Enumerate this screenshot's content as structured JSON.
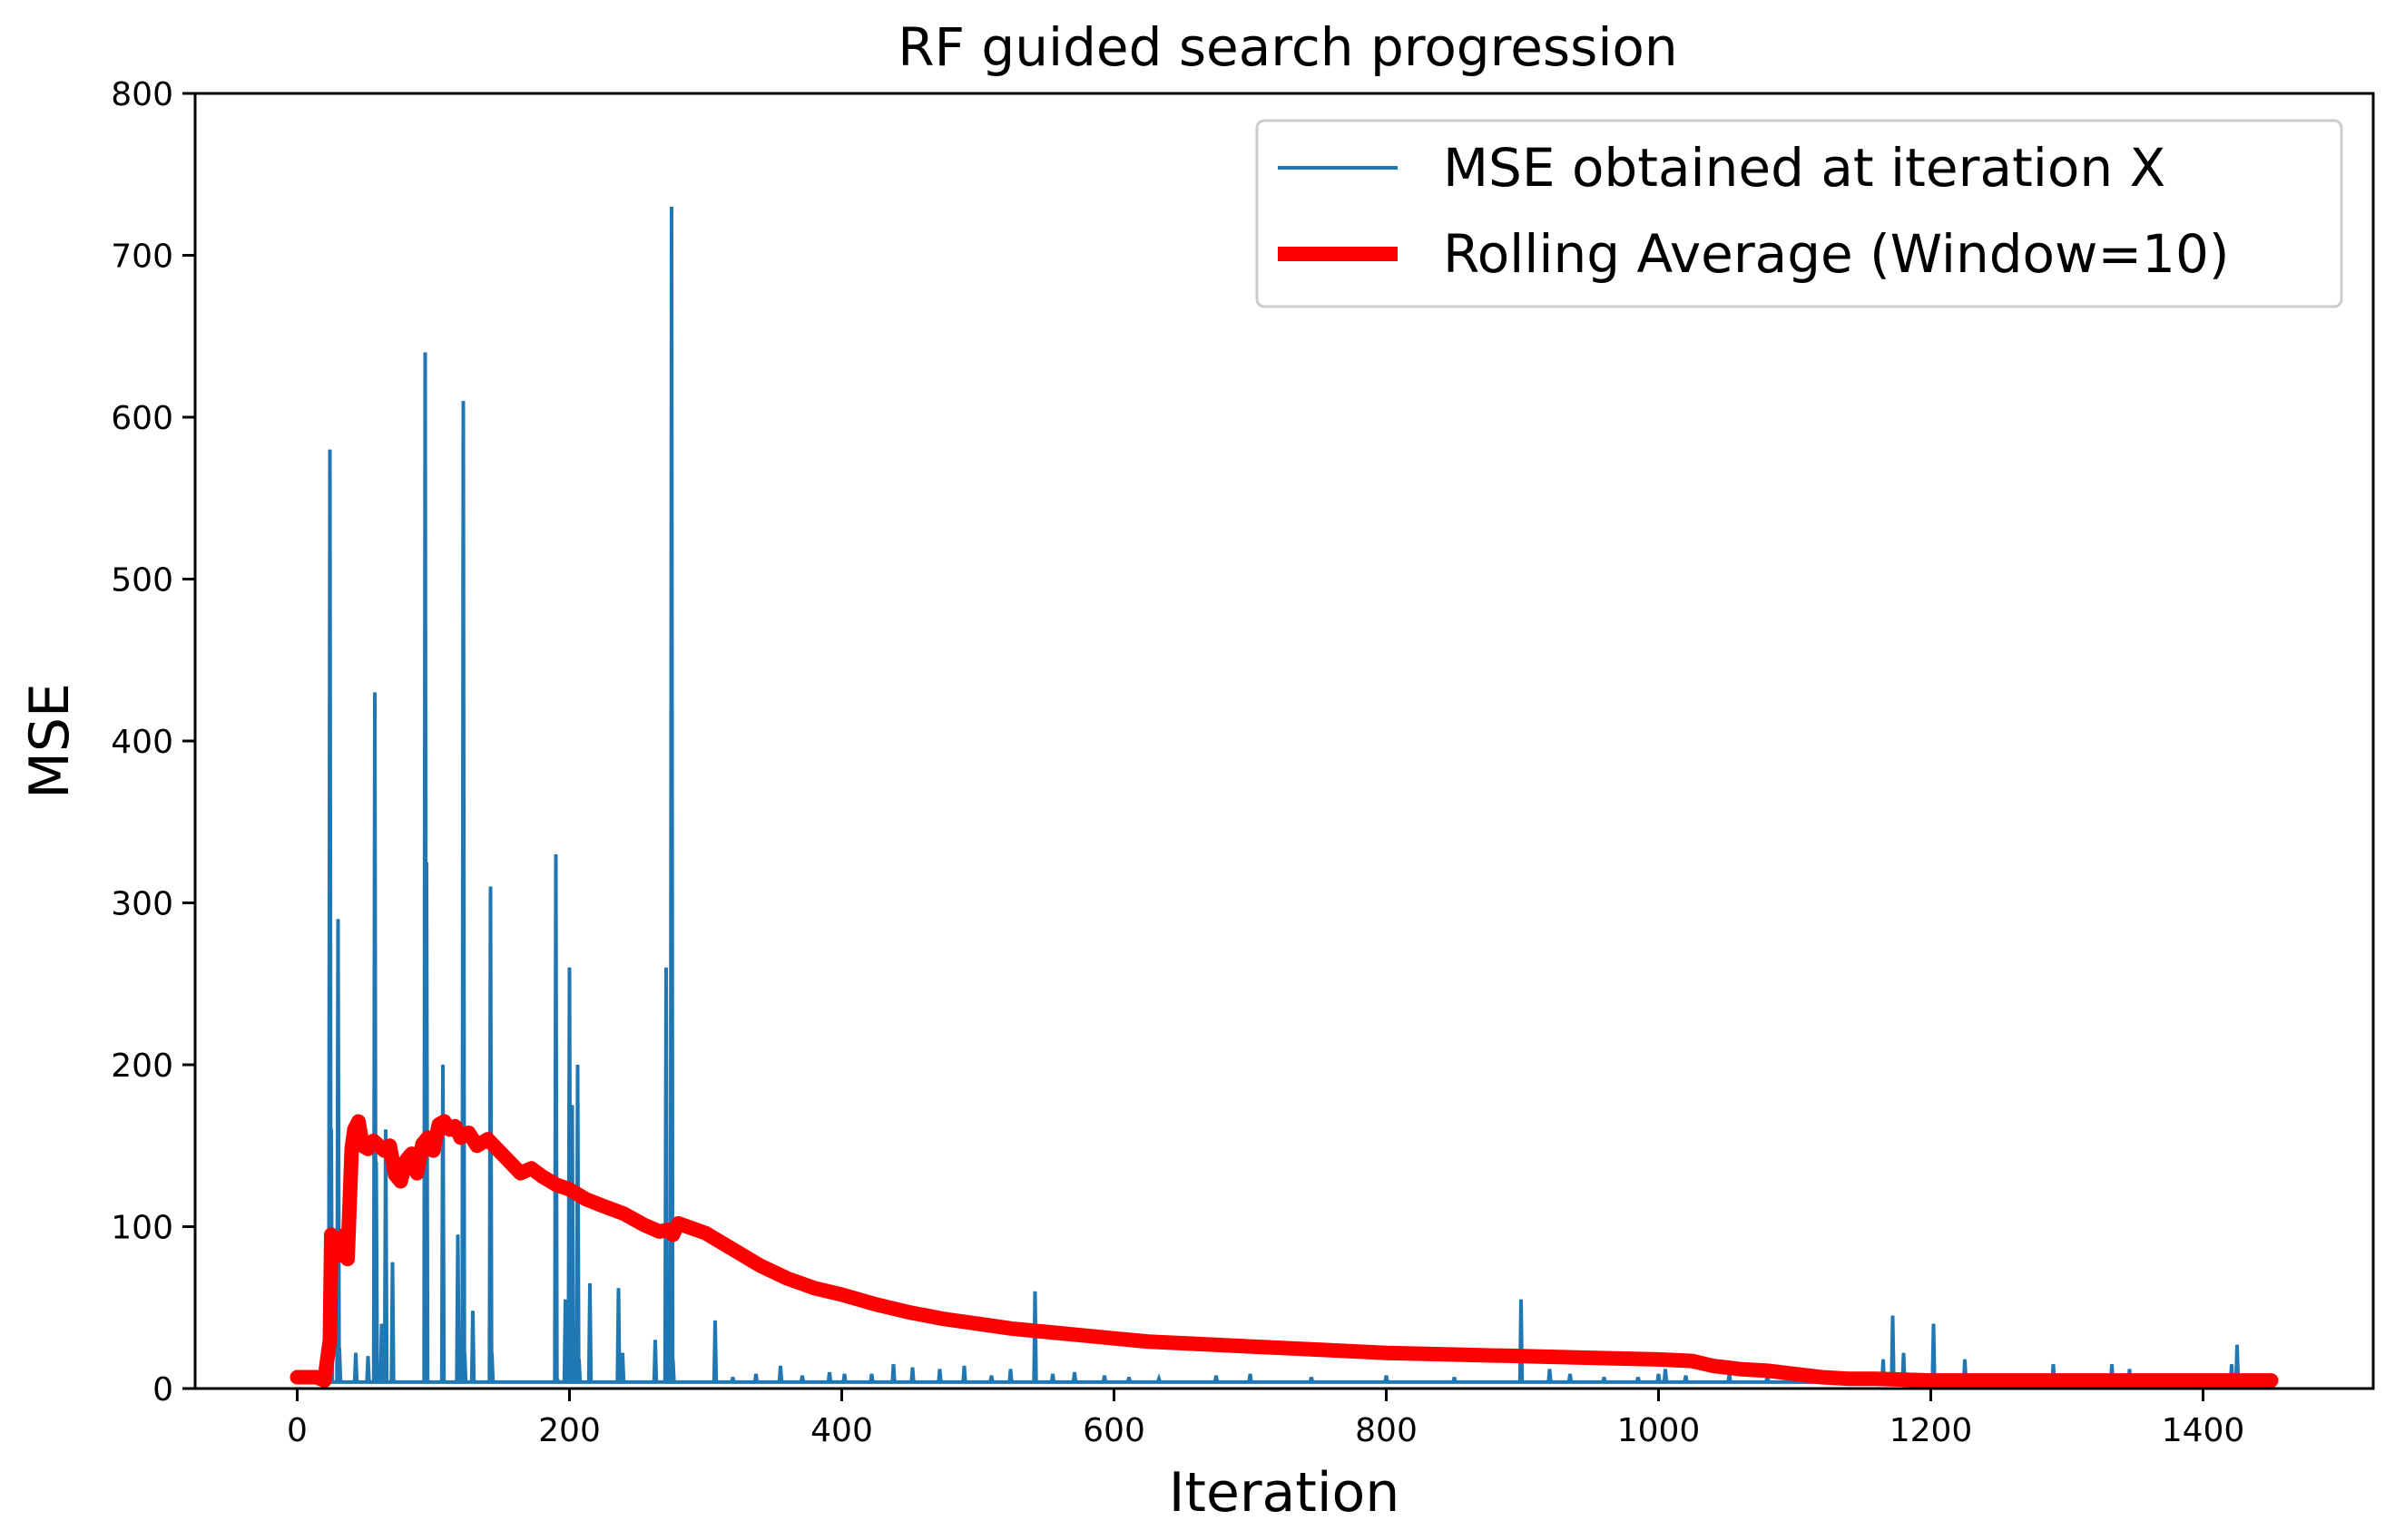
{
  "chart_data": {
    "type": "line",
    "title": "RF guided search progression",
    "xlabel": "Iteration",
    "ylabel": "MSE",
    "xlim": [
      -75,
      1525
    ],
    "ylim": [
      0,
      800
    ],
    "xticks": [
      0,
      200,
      400,
      600,
      800,
      1000,
      1200,
      1400
    ],
    "yticks": [
      0,
      100,
      200,
      300,
      400,
      500,
      600,
      700,
      800
    ],
    "grid": false,
    "legend_position": "top-right",
    "colors": {
      "series_0": "#1f77b4",
      "series_1": "#ff0000"
    },
    "series": [
      {
        "name": "MSE obtained at iteration X",
        "style": "thin-line",
        "baseline": 4,
        "spikes": [
          [
            5,
            8
          ],
          [
            18,
            9
          ],
          [
            24,
            580
          ],
          [
            25,
            160
          ],
          [
            30,
            290
          ],
          [
            31,
            25
          ],
          [
            36,
            4
          ],
          [
            43,
            22
          ],
          [
            52,
            20
          ],
          [
            57,
            430
          ],
          [
            58,
            140
          ],
          [
            62,
            40
          ],
          [
            65,
            160
          ],
          [
            70,
            78
          ],
          [
            80,
            4
          ],
          [
            89,
            4
          ],
          [
            94,
            640
          ],
          [
            95,
            325
          ],
          [
            107,
            200
          ],
          [
            118,
            95
          ],
          [
            122,
            610
          ],
          [
            123,
            22
          ],
          [
            129,
            48
          ],
          [
            142,
            310
          ],
          [
            143,
            22
          ],
          [
            150,
            4
          ],
          [
            161,
            4
          ],
          [
            170,
            4
          ],
          [
            190,
            330
          ],
          [
            191,
            6
          ],
          [
            197,
            55
          ],
          [
            200,
            260
          ],
          [
            202,
            175
          ],
          [
            203,
            6
          ],
          [
            206,
            200
          ],
          [
            207,
            18
          ],
          [
            215,
            65
          ],
          [
            236,
            62
          ],
          [
            239,
            22
          ],
          [
            252,
            4
          ],
          [
            263,
            30
          ],
          [
            271,
            260
          ],
          [
            275,
            730
          ],
          [
            276,
            18
          ],
          [
            289,
            4
          ],
          [
            307,
            42
          ],
          [
            320,
            7
          ],
          [
            337,
            9
          ],
          [
            355,
            14
          ],
          [
            371,
            8
          ],
          [
            391,
            10
          ],
          [
            402,
            9
          ],
          [
            422,
            9
          ],
          [
            438,
            15
          ],
          [
            452,
            13
          ],
          [
            472,
            12
          ],
          [
            490,
            14
          ],
          [
            510,
            8
          ],
          [
            524,
            12
          ],
          [
            542,
            60
          ],
          [
            555,
            9
          ],
          [
            571,
            10
          ],
          [
            593,
            8
          ],
          [
            611,
            7
          ],
          [
            633,
            6
          ],
          [
            675,
            8
          ],
          [
            700,
            9
          ],
          [
            745,
            7
          ],
          [
            800,
            8
          ],
          [
            850,
            7
          ],
          [
            899,
            55
          ],
          [
            920,
            12
          ],
          [
            935,
            9
          ],
          [
            960,
            7
          ],
          [
            985,
            7
          ],
          [
            1000,
            9
          ],
          [
            1005,
            12
          ],
          [
            1020,
            8
          ],
          [
            1052,
            9
          ],
          [
            1080,
            9
          ],
          [
            1110,
            7
          ],
          [
            1140,
            6
          ],
          [
            1165,
            18
          ],
          [
            1172,
            45
          ],
          [
            1180,
            22
          ],
          [
            1202,
            40
          ],
          [
            1225,
            18
          ],
          [
            1246,
            6
          ],
          [
            1263,
            8
          ],
          [
            1290,
            15
          ],
          [
            1296,
            9
          ],
          [
            1333,
            15
          ],
          [
            1346,
            12
          ],
          [
            1380,
            6
          ],
          [
            1405,
            8
          ],
          [
            1421,
            15
          ],
          [
            1425,
            27
          ],
          [
            1437,
            6
          ]
        ]
      },
      {
        "name": "Rolling Average (Window=10)",
        "style": "thick-line",
        "points": [
          [
            0,
            7
          ],
          [
            14,
            7
          ],
          [
            20,
            5
          ],
          [
            24,
            30
          ],
          [
            25,
            95
          ],
          [
            30,
            82
          ],
          [
            35,
            95
          ],
          [
            37,
            80
          ],
          [
            40,
            148
          ],
          [
            42,
            160
          ],
          [
            45,
            165
          ],
          [
            48,
            150
          ],
          [
            52,
            148
          ],
          [
            56,
            153
          ],
          [
            60,
            150
          ],
          [
            64,
            147
          ],
          [
            68,
            150
          ],
          [
            72,
            132
          ],
          [
            76,
            128
          ],
          [
            80,
            141
          ],
          [
            84,
            145
          ],
          [
            88,
            133
          ],
          [
            92,
            151
          ],
          [
            96,
            155
          ],
          [
            100,
            147
          ],
          [
            104,
            163
          ],
          [
            108,
            165
          ],
          [
            112,
            160
          ],
          [
            116,
            162
          ],
          [
            120,
            155
          ],
          [
            126,
            158
          ],
          [
            132,
            150
          ],
          [
            140,
            154
          ],
          [
            148,
            147
          ],
          [
            156,
            140
          ],
          [
            164,
            133
          ],
          [
            172,
            136
          ],
          [
            180,
            131
          ],
          [
            190,
            126
          ],
          [
            200,
            123
          ],
          [
            212,
            117
          ],
          [
            224,
            113
          ],
          [
            240,
            108
          ],
          [
            255,
            101
          ],
          [
            266,
            97
          ],
          [
            272,
            98
          ],
          [
            276,
            95
          ],
          [
            280,
            102
          ],
          [
            290,
            99
          ],
          [
            300,
            96
          ],
          [
            320,
            86
          ],
          [
            340,
            76
          ],
          [
            360,
            68
          ],
          [
            380,
            62
          ],
          [
            400,
            58
          ],
          [
            425,
            52
          ],
          [
            450,
            47
          ],
          [
            475,
            43
          ],
          [
            500,
            40
          ],
          [
            525,
            37
          ],
          [
            550,
            35
          ],
          [
            575,
            33
          ],
          [
            600,
            31
          ],
          [
            625,
            29
          ],
          [
            650,
            28
          ],
          [
            700,
            26
          ],
          [
            750,
            24
          ],
          [
            800,
            22
          ],
          [
            850,
            21
          ],
          [
            900,
            20
          ],
          [
            950,
            19
          ],
          [
            1000,
            18
          ],
          [
            1025,
            17
          ],
          [
            1040,
            14
          ],
          [
            1060,
            12
          ],
          [
            1080,
            11
          ],
          [
            1100,
            9
          ],
          [
            1120,
            7
          ],
          [
            1140,
            6
          ],
          [
            1160,
            6
          ],
          [
            1200,
            5
          ],
          [
            1260,
            5
          ],
          [
            1300,
            5
          ],
          [
            1350,
            5
          ],
          [
            1400,
            5
          ],
          [
            1450,
            5
          ]
        ]
      }
    ]
  }
}
